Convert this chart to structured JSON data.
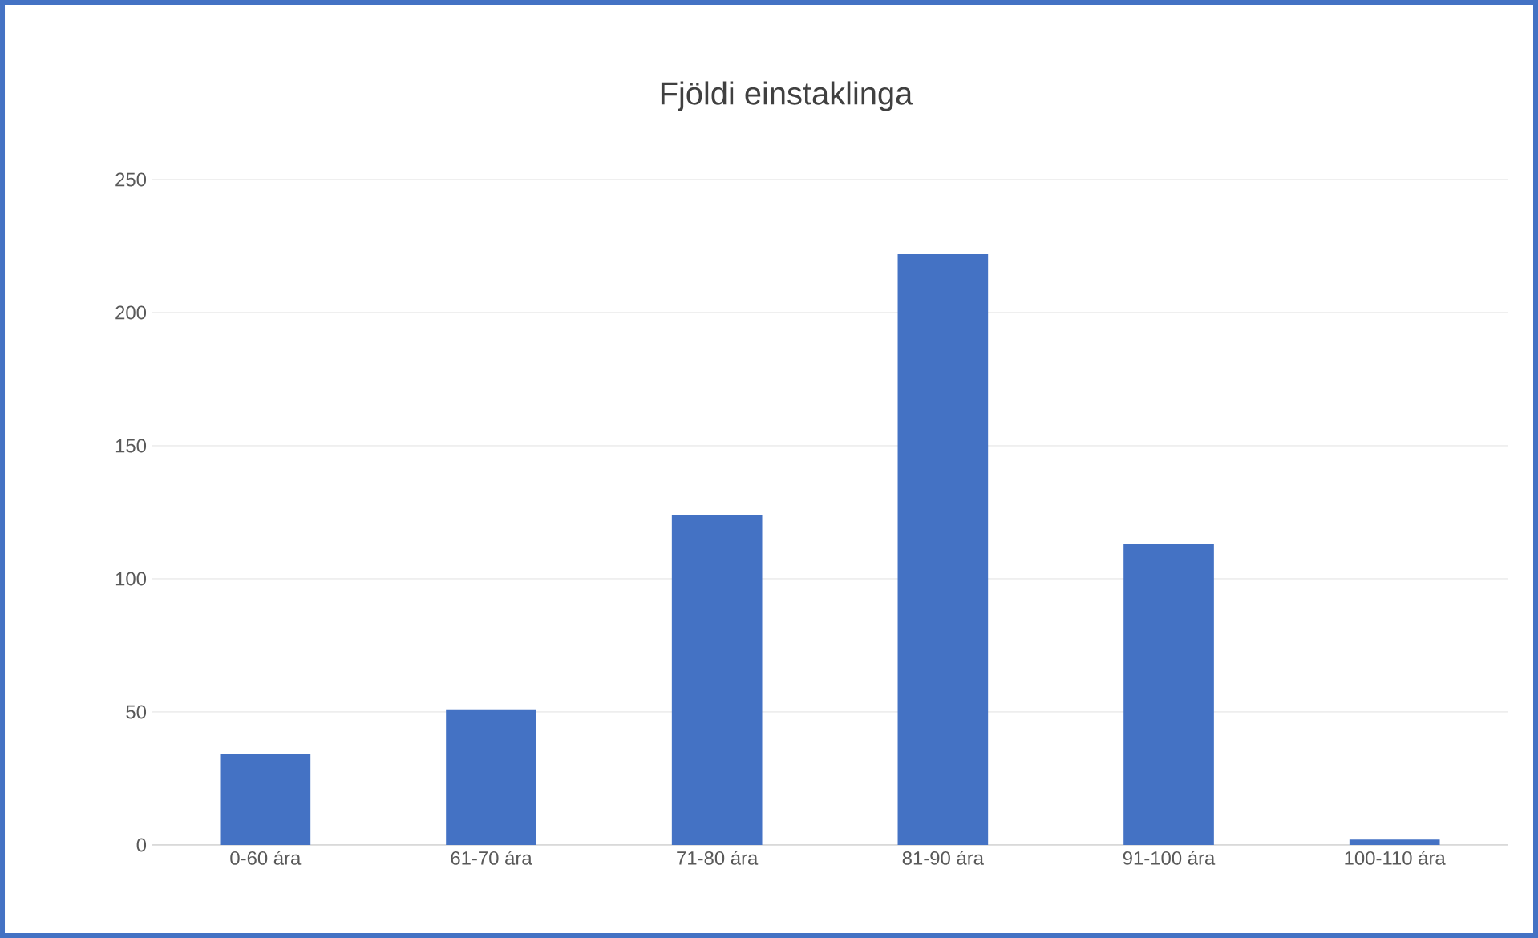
{
  "chart_data": {
    "type": "bar",
    "title": "Fjöldi einstaklinga",
    "categories": [
      "0-60 ára",
      "61-70 ára",
      "71-80 ára",
      "81-90 ára",
      "91-100 ára",
      "100-110 ára"
    ],
    "values": [
      34,
      51,
      124,
      222,
      113,
      2
    ],
    "color": "#4472c4",
    "ylim": [
      0,
      250
    ],
    "yticks": [
      0,
      50,
      100,
      150,
      200,
      250
    ],
    "grid": "y"
  }
}
